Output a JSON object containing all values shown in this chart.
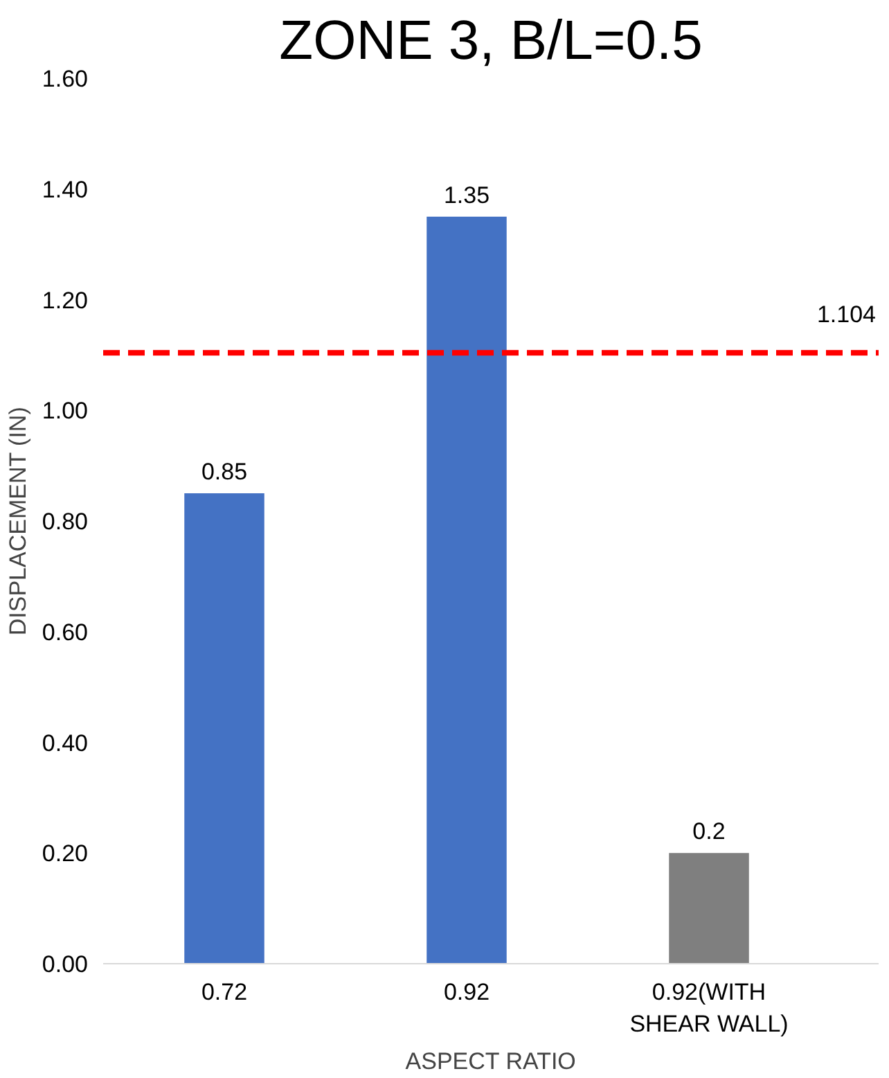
{
  "chart_data": {
    "type": "bar",
    "title": "ZONE 3, B/L=0.5",
    "xlabel": "ASPECT RATIO",
    "ylabel": "DISPLACEMENT (IN)",
    "categories": [
      "0.72",
      "0.92",
      "0.92(WITH SHEAR WALL)"
    ],
    "values": [
      0.85,
      1.35,
      0.2
    ],
    "colors": [
      "#4472c4",
      "#4472c4",
      "#7f7f7f"
    ],
    "ylim": [
      0,
      1.6
    ],
    "yticks": [
      {
        "value": 0,
        "label": "0.00"
      },
      {
        "value": 0.2,
        "label": "0.20"
      },
      {
        "value": 0.4,
        "label": "0.40"
      },
      {
        "value": 0.6,
        "label": "0.60"
      },
      {
        "value": 0.8,
        "label": "0.80"
      },
      {
        "value": 1.0,
        "label": "1.00"
      },
      {
        "value": 1.2,
        "label": "1.20"
      },
      {
        "value": 1.4,
        "label": "1.40"
      },
      {
        "value": 1.6,
        "label": "1.60"
      }
    ],
    "data_labels": true,
    "grid": false,
    "ref_lines": [
      {
        "axis": "y",
        "value": 1.104,
        "label": "1.104",
        "color": "#ff0000",
        "line_style": "dashed"
      }
    ]
  }
}
